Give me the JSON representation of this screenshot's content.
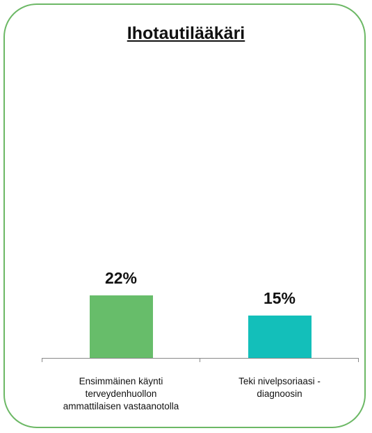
{
  "chart_data": {
    "type": "bar",
    "title": "Ihotautilääkäri",
    "categories": [
      "Ensimmäinen käynti terveydenhuollon ammattilaisen vastaanotolla",
      "Teki nivelpsoriaasi -diagnoosin"
    ],
    "values": [
      22,
      15
    ],
    "value_labels": [
      "22%",
      "15%"
    ],
    "colors": [
      "#67bd6a",
      "#13bfba"
    ]
  }
}
